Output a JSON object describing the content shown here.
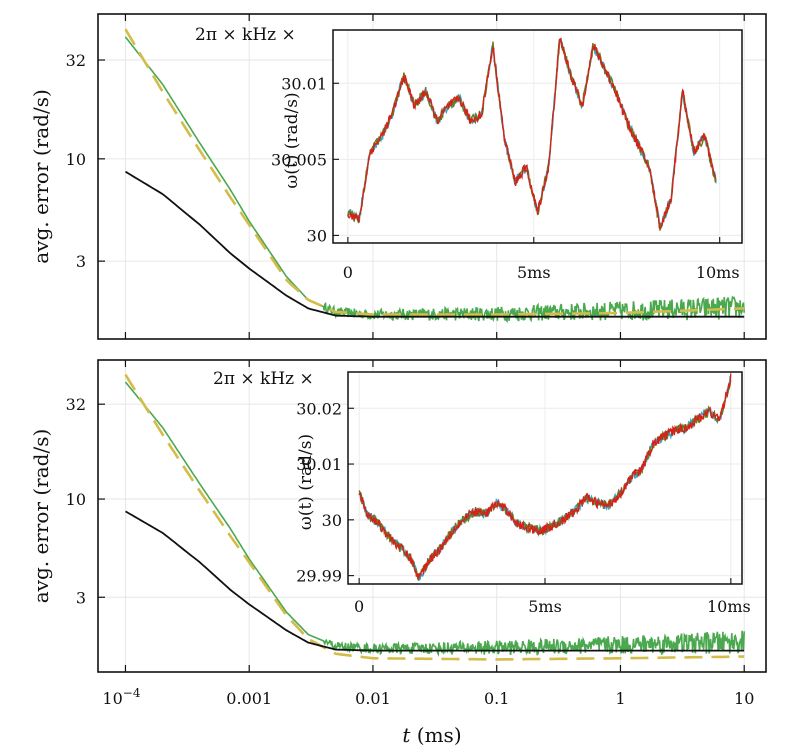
{
  "chart_data": [
    {
      "type": "line",
      "panel": "top",
      "xscale": "log",
      "yscale": "log",
      "xlim": [
        6e-05,
        15
      ],
      "ylim": [
        1.2,
        55
      ],
      "ylabel": "avg. error (rad/s)",
      "yticks": [
        3,
        10,
        32
      ],
      "ytick_labels": [
        "3",
        "10",
        "32"
      ],
      "xticks": [
        0.0001,
        0.001,
        0.01,
        0.1,
        1,
        10
      ],
      "grid": true,
      "series": [
        {
          "color": "#4aa84f",
          "style": "solid",
          "noisy": true,
          "x": [
            0.0001,
            0.0002,
            0.0004,
            0.0007,
            0.001,
            0.002,
            0.003,
            0.005,
            0.01,
            0.1,
            1,
            10
          ],
          "y": [
            42,
            24,
            12,
            7,
            4.8,
            2.5,
            1.9,
            1.65,
            1.6,
            1.62,
            1.68,
            1.75
          ]
        },
        {
          "color": "#d4bc4a",
          "style": "dashed",
          "x": [
            0.0001,
            0.0002,
            0.0004,
            0.0007,
            0.001,
            0.002,
            0.003,
            0.005,
            0.01,
            0.1,
            1,
            10
          ],
          "y": [
            46,
            22,
            11,
            6.4,
            4.6,
            2.4,
            1.9,
            1.65,
            1.6,
            1.6,
            1.63,
            1.72
          ]
        },
        {
          "color": "#111111",
          "style": "solid",
          "x": [
            0.0001,
            0.0002,
            0.0004,
            0.0007,
            0.001,
            0.002,
            0.003,
            0.005,
            0.01,
            0.1,
            1,
            10
          ],
          "y": [
            8.6,
            6.6,
            4.6,
            3.3,
            2.75,
            2.0,
            1.72,
            1.58,
            1.56,
            1.56,
            1.56,
            1.56
          ]
        }
      ],
      "inset": {
        "title": "2π × kHz ×",
        "ylabel": "ω(t) (rad/s)",
        "yticks": [
          30,
          30.005,
          30.01
        ],
        "ytick_labels": [
          "30",
          "30.005",
          "30.01"
        ],
        "ylim": [
          29.9995,
          30.0135
        ],
        "xticks": [
          0,
          5,
          10
        ],
        "xtick_labels": [
          "0",
          "5ms",
          "10ms"
        ],
        "xlim": [
          -0.4,
          10.6
        ],
        "series_colors": [
          "#35a6d4",
          "#6b7a1e",
          "#d8201a"
        ],
        "x": [
          0,
          0.3,
          0.6,
          0.9,
          1.2,
          1.5,
          1.8,
          2.1,
          2.4,
          2.7,
          3.0,
          3.3,
          3.6,
          3.9,
          4.2,
          4.5,
          4.8,
          5.1,
          5.4,
          5.7,
          6.0,
          6.3,
          6.6,
          6.9,
          7.2,
          7.5,
          7.8,
          8.1,
          8.4,
          8.7,
          9.0,
          9.3,
          9.6,
          9.9
        ],
        "y": [
          30.0015,
          30.001,
          30.0055,
          30.0065,
          30.008,
          30.0105,
          30.0085,
          30.0095,
          30.0075,
          30.0085,
          30.009,
          30.0075,
          30.008,
          30.0125,
          30.0065,
          30.0035,
          30.0045,
          30.0015,
          30.0045,
          30.013,
          30.0105,
          30.0085,
          30.0125,
          30.011,
          30.0095,
          30.0075,
          30.006,
          30.0045,
          30.0005,
          30.0025,
          30.0095,
          30.0055,
          30.0065,
          30.0035
        ]
      }
    },
    {
      "type": "line",
      "panel": "bottom",
      "xscale": "log",
      "yscale": "log",
      "xlim": [
        6e-05,
        15
      ],
      "ylim": [
        1.2,
        55
      ],
      "xlabel": "t (ms)",
      "ylabel": "avg. error (rad/s)",
      "yticks": [
        3,
        10,
        32
      ],
      "ytick_labels": [
        "3",
        "10",
        "32"
      ],
      "xticks": [
        0.0001,
        0.001,
        0.01,
        0.1,
        1,
        10
      ],
      "xtick_labels": [
        "10^-4",
        "0.001",
        "0.01",
        "0.1",
        "1",
        "10"
      ],
      "grid": true,
      "series": [
        {
          "color": "#4aa84f",
          "style": "solid",
          "noisy": true,
          "x": [
            0.0001,
            0.0002,
            0.0004,
            0.0007,
            0.001,
            0.002,
            0.003,
            0.005,
            0.01,
            0.1,
            1,
            10
          ],
          "y": [
            42,
            24,
            12,
            7,
            4.8,
            2.5,
            1.9,
            1.65,
            1.6,
            1.62,
            1.68,
            1.75
          ]
        },
        {
          "color": "#d4bc4a",
          "style": "dashed",
          "x": [
            0.0001,
            0.0002,
            0.0004,
            0.0007,
            0.001,
            0.002,
            0.003,
            0.005,
            0.01,
            0.1,
            1,
            10
          ],
          "y": [
            46,
            22,
            11,
            6.4,
            4.6,
            2.4,
            1.8,
            1.5,
            1.42,
            1.4,
            1.42,
            1.45
          ]
        },
        {
          "color": "#111111",
          "style": "solid",
          "x": [
            0.0001,
            0.0002,
            0.0004,
            0.0007,
            0.001,
            0.002,
            0.003,
            0.005,
            0.01,
            0.1,
            1,
            10
          ],
          "y": [
            8.6,
            6.6,
            4.6,
            3.3,
            2.75,
            2.0,
            1.72,
            1.58,
            1.56,
            1.56,
            1.56,
            1.56
          ]
        }
      ],
      "inset": {
        "title": "2π × kHz ×",
        "ylabel": "ω(t) (rad/s)",
        "yticks": [
          29.99,
          30,
          30.01,
          30.02
        ],
        "ytick_labels": [
          "29.99",
          "30",
          "30.01",
          "30.02"
        ],
        "ylim": [
          29.9885,
          30.0265
        ],
        "xticks": [
          0,
          5,
          10
        ],
        "xtick_labels": [
          "0",
          "5ms",
          "10ms"
        ],
        "xlim": [
          -0.3,
          10.3
        ],
        "series_colors": [
          "#35a6d4",
          "#6b7a1e",
          "#d8201a"
        ],
        "x": [
          0,
          0.2,
          0.5,
          0.8,
          1.1,
          1.4,
          1.6,
          1.9,
          2.2,
          2.5,
          2.8,
          3.1,
          3.4,
          3.7,
          4.0,
          4.3,
          4.6,
          4.9,
          5.2,
          5.5,
          5.8,
          6.1,
          6.4,
          6.7,
          7.0,
          7.3,
          7.6,
          7.9,
          8.2,
          8.5,
          8.8,
          9.1,
          9.4,
          9.7,
          10.0
        ],
        "y": [
          30.005,
          30.001,
          29.9995,
          29.997,
          29.995,
          29.993,
          29.9895,
          29.993,
          29.995,
          29.998,
          30.0,
          30.0015,
          30.001,
          30.003,
          30.0015,
          29.999,
          29.9985,
          29.998,
          29.999,
          30.0,
          30.0015,
          30.004,
          30.003,
          30.0025,
          30.0045,
          30.0075,
          30.009,
          30.0135,
          30.015,
          30.016,
          30.0165,
          30.018,
          30.0195,
          30.018,
          30.0255
        ]
      }
    }
  ]
}
